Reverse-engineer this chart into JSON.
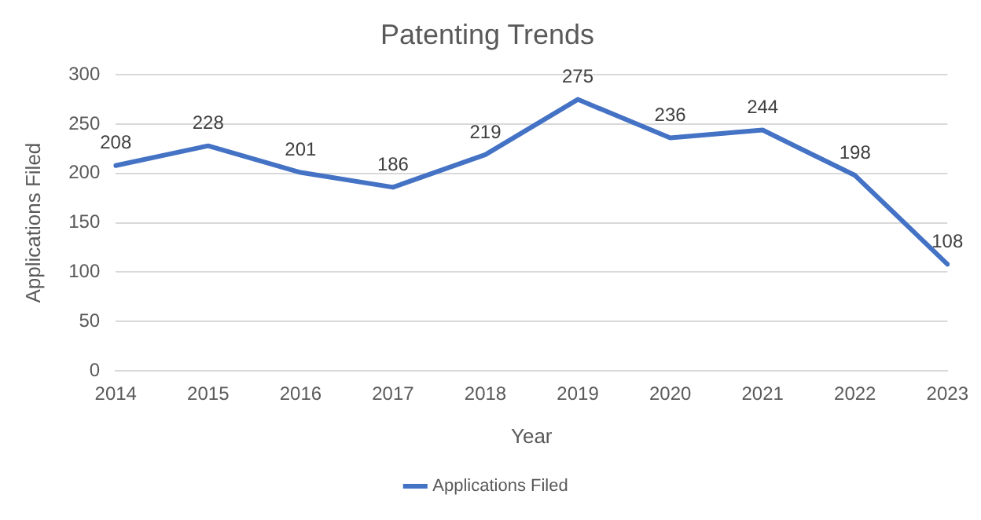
{
  "chart_data": {
    "type": "line",
    "title": "Patenting Trends",
    "xlabel": "Year",
    "ylabel": "Applications Filed",
    "categories": [
      "2014",
      "2015",
      "2016",
      "2017",
      "2018",
      "2019",
      "2020",
      "2021",
      "2022",
      "2023"
    ],
    "series": [
      {
        "name": "Applications Filed",
        "color": "#4472c4",
        "values": [
          208,
          228,
          201,
          186,
          219,
          275,
          236,
          244,
          198,
          108
        ]
      }
    ],
    "ylim": [
      0,
      300
    ],
    "yticks": [
      0,
      50,
      100,
      150,
      200,
      250,
      300
    ],
    "grid": "y",
    "legend": "bottom",
    "data_labels": true,
    "line_style": "solid"
  }
}
